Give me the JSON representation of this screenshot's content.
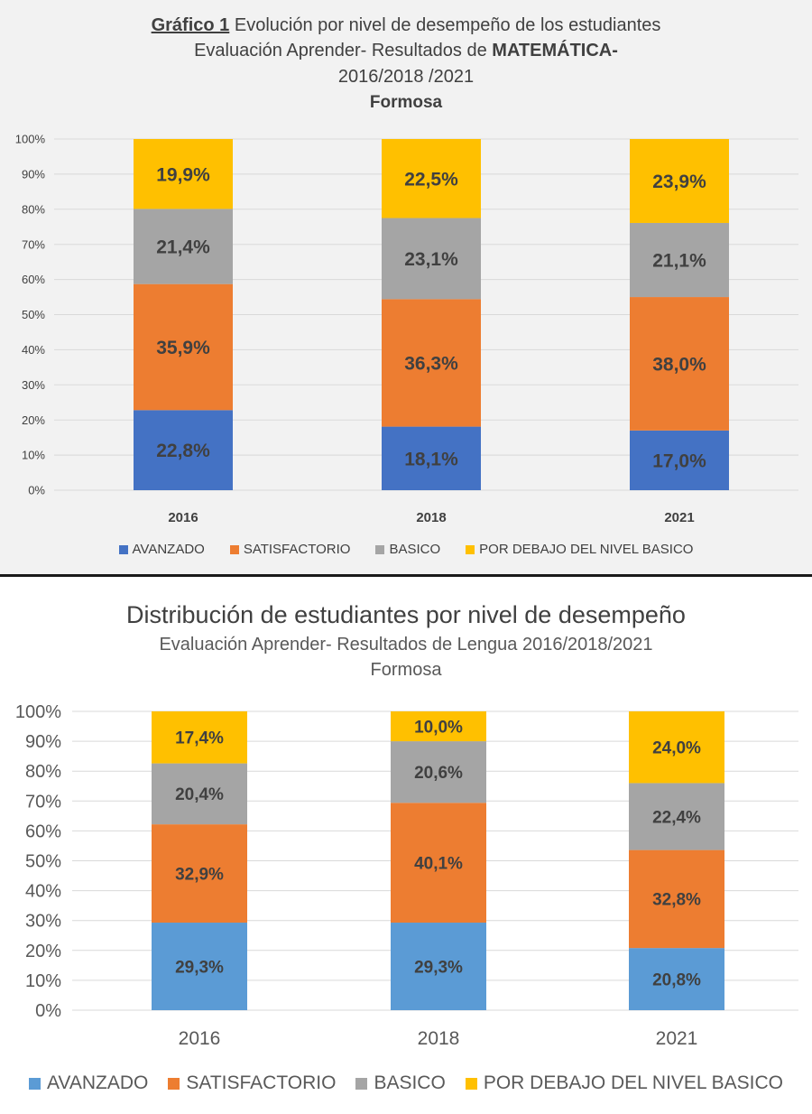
{
  "chart_data": [
    {
      "type": "bar",
      "stacked": true,
      "title_lead": "Gráfico 1",
      "title": "Evolución  por nivel de desempeño de los estudiantes",
      "subtitle_prefix": "Evaluación Aprender- Resultados de",
      "subtitle_emphasis": "MATEMÁTICA-",
      "years_line": "2016/2018 /2021",
      "region": "Formosa",
      "categories": [
        "2016",
        "2018",
        "2021"
      ],
      "series": [
        {
          "name": "AVANZADO",
          "color": "#4472c4",
          "values": [
            22.8,
            18.1,
            17.0
          ],
          "labels": [
            "22,8%",
            "18,1%",
            "17,0%"
          ]
        },
        {
          "name": "SATISFACTORIO",
          "color": "#ed7d31",
          "values": [
            35.9,
            36.3,
            38.0
          ],
          "labels": [
            "35,9%",
            "36,3%",
            "38,0%"
          ]
        },
        {
          "name": "BASICO",
          "color": "#a5a5a5",
          "values": [
            21.4,
            23.1,
            21.1
          ],
          "labels": [
            "21,4%",
            "23,1%",
            "21,1%"
          ]
        },
        {
          "name": "POR DEBAJO DEL NIVEL BASICO",
          "color": "#ffc000",
          "values": [
            19.9,
            22.5,
            23.9
          ],
          "labels": [
            "19,9%",
            "22,5%",
            "23,9%"
          ]
        }
      ],
      "ylim": [
        0,
        100
      ],
      "yticks": [
        "0%",
        "10%",
        "20%",
        "30%",
        "40%",
        "50%",
        "60%",
        "70%",
        "80%",
        "90%",
        "100%"
      ],
      "grid": true,
      "legend_position": "bottom"
    },
    {
      "type": "bar",
      "stacked": true,
      "title": "Distribución de estudiantes por nivel de desempeño",
      "subtitle": "Evaluación Aprender- Resultados de Lengua 2016/2018/2021",
      "region": "Formosa",
      "categories": [
        "2016",
        "2018",
        "2021"
      ],
      "series": [
        {
          "name": "AVANZADO",
          "color": "#5b9bd5",
          "values": [
            29.3,
            29.3,
            20.8
          ],
          "labels": [
            "29,3%",
            "29,3%",
            "20,8%"
          ]
        },
        {
          "name": "SATISFACTORIO",
          "color": "#ed7d31",
          "values": [
            32.9,
            40.1,
            32.8
          ],
          "labels": [
            "32,9%",
            "40,1%",
            "32,8%"
          ]
        },
        {
          "name": "BASICO",
          "color": "#a5a5a5",
          "values": [
            20.4,
            20.6,
            22.4
          ],
          "labels": [
            "20,4%",
            "20,6%",
            "22,4%"
          ]
        },
        {
          "name": "POR DEBAJO DEL NIVEL BASICO",
          "color": "#ffc000",
          "values": [
            17.4,
            10.0,
            24.0
          ],
          "labels": [
            "17,4%",
            "10,0%",
            "24,0%"
          ]
        }
      ],
      "ylim": [
        0,
        100
      ],
      "yticks": [
        "0%",
        "10%",
        "20%",
        "30%",
        "40%",
        "50%",
        "60%",
        "70%",
        "80%",
        "90%",
        "100%"
      ],
      "grid": true,
      "legend_position": "bottom"
    }
  ]
}
